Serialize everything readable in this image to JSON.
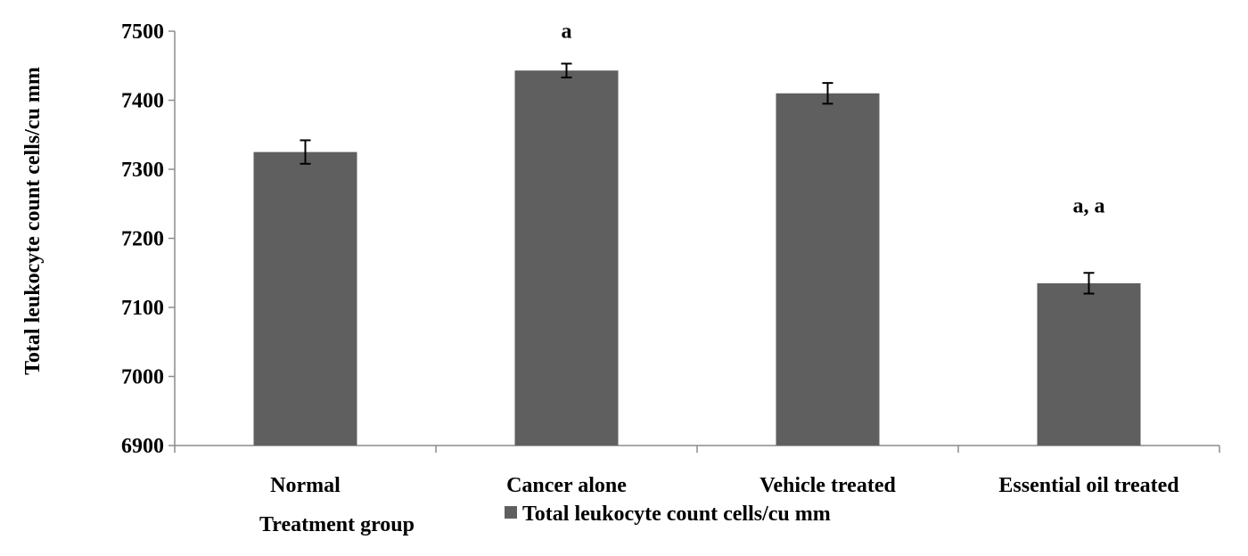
{
  "chart_data": {
    "type": "bar",
    "categories": [
      "Normal",
      "Cancer alone",
      "Vehicle treated",
      "Essential oil treated"
    ],
    "series": [
      {
        "name": "Total leukocyte count cells/cu mm",
        "values": [
          7325,
          7443,
          7410,
          7135
        ],
        "errors": [
          17,
          10,
          15,
          15
        ]
      }
    ],
    "annotations": [
      "",
      "a",
      "",
      "a, a"
    ],
    "xlabel": "Treatment group",
    "ylabel": "Total leukocyte count cells/cu mm",
    "ylim": [
      6900,
      7500
    ],
    "yticks": [
      6900,
      7000,
      7100,
      7200,
      7300,
      7400,
      7500
    ],
    "grid": false,
    "legend": "bottom",
    "colors": {
      "bar": "#5f5f5f",
      "axis": "#8c8c8c",
      "error": "#000000"
    }
  }
}
